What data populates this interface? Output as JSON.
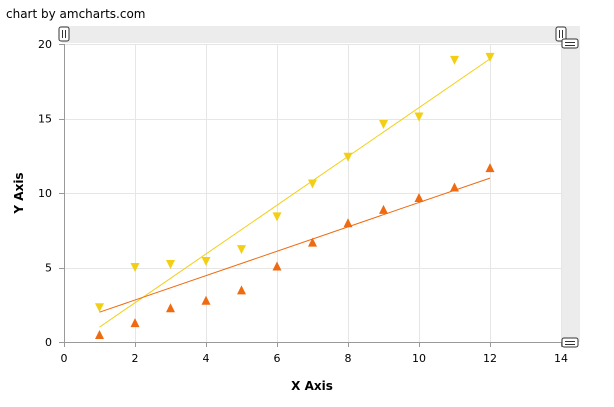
{
  "credit": {
    "label": "chart by amcharts.com"
  },
  "chart_data": {
    "type": "scatter",
    "title": "",
    "xlabel": "X Axis",
    "ylabel": "Y Axis",
    "xlim": [
      0,
      14
    ],
    "ylim": [
      0,
      20
    ],
    "x_ticks": [
      0,
      2,
      4,
      6,
      8,
      10,
      12,
      14
    ],
    "y_ticks": [
      0,
      5,
      10,
      15,
      20
    ],
    "grid": true,
    "legend": "none",
    "series": [
      {
        "marker": "triangle-down",
        "color": "#f2cf13",
        "points": [
          [
            1,
            2.3
          ],
          [
            2,
            5.0
          ],
          [
            3,
            5.2
          ],
          [
            4,
            5.4
          ],
          [
            5,
            6.2
          ],
          [
            6,
            8.4
          ],
          [
            7,
            10.6
          ],
          [
            8,
            12.4
          ],
          [
            9,
            14.6
          ],
          [
            10,
            15.1
          ],
          [
            11,
            18.9
          ],
          [
            12,
            19.1
          ]
        ],
        "trendline": [
          [
            1,
            1.0
          ],
          [
            12,
            19.0
          ]
        ]
      },
      {
        "marker": "triangle-up",
        "color": "#ef6a10",
        "points": [
          [
            1,
            0.5
          ],
          [
            2,
            1.3
          ],
          [
            3,
            2.3
          ],
          [
            4,
            2.8
          ],
          [
            5,
            3.5
          ],
          [
            6,
            5.1
          ],
          [
            7,
            6.7
          ],
          [
            8,
            8.0
          ],
          [
            9,
            8.9
          ],
          [
            10,
            9.7
          ],
          [
            11,
            10.4
          ],
          [
            12,
            11.7
          ]
        ],
        "trendline": [
          [
            1,
            2.0
          ],
          [
            12,
            11.0
          ]
        ]
      }
    ]
  }
}
